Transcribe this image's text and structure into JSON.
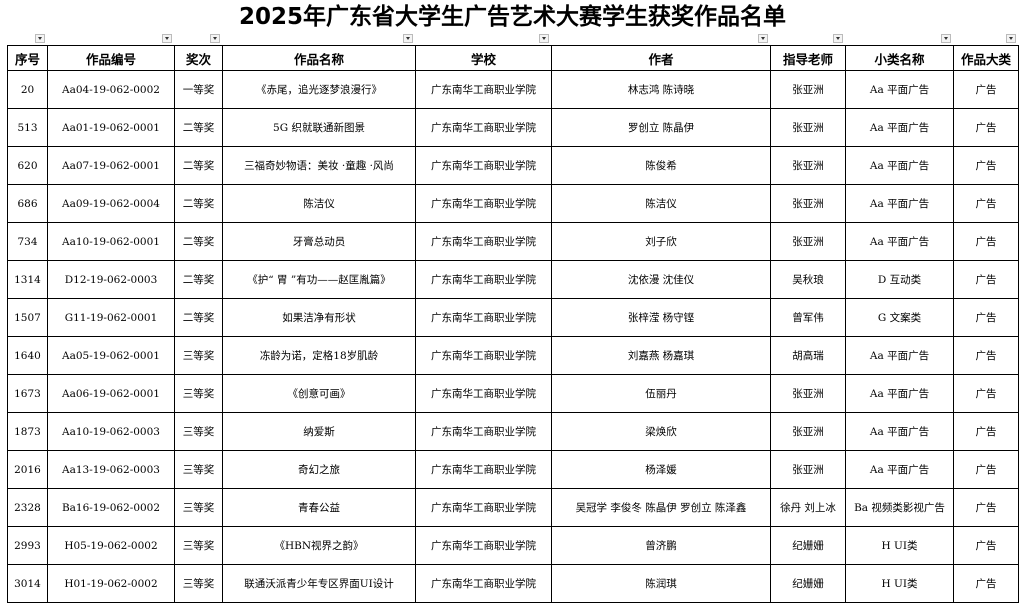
{
  "title": "2025年广东省大学生广告艺术大赛学生获奖作品名单",
  "table": {
    "header": [
      "序号",
      "作品编号",
      "奖次",
      "作品名称",
      "学校",
      "作者",
      "指导老师",
      "小类名称",
      "作品大类"
    ],
    "rows": [
      [
        "20",
        "Aa04-19-062-0002",
        "一等奖",
        "《赤尾，追光逐梦浪漫行》",
        "广东南华工商职业学院",
        "林志鸿 陈诗晓",
        "张亚洲",
        "Aa 平面广告",
        "广告"
      ],
      [
        "513",
        "Aa01-19-062-0001",
        "二等奖",
        "5G 织就联通新图景",
        "广东南华工商职业学院",
        "罗创立 陈晶伊",
        "张亚洲",
        "Aa 平面广告",
        "广告"
      ],
      [
        "620",
        "Aa07-19-062-0001",
        "二等奖",
        "三福奇妙物语：美妆 ·童趣 ·风尚",
        "广东南华工商职业学院",
        "陈俊希",
        "张亚洲",
        "Aa 平面广告",
        "广告"
      ],
      [
        "686",
        "Aa09-19-062-0004",
        "二等奖",
        "陈洁仪",
        "广东南华工商职业学院",
        "陈洁仪",
        "张亚洲",
        "Aa 平面广告",
        "广告"
      ],
      [
        "734",
        "Aa10-19-062-0001",
        "二等奖",
        "牙膏总动员",
        "广东南华工商职业学院",
        "刘子欣",
        "张亚洲",
        "Aa 平面广告",
        "广告"
      ],
      [
        "1314",
        "D12-19-062-0003",
        "二等奖",
        "《护“ 胃 ”有功——赵匡胤篇》",
        "广东南华工商职业学院",
        "沈依漫 沈佳仪",
        "吴秋琅",
        "D 互动类",
        "广告"
      ],
      [
        "1507",
        "G11-19-062-0001",
        "二等奖",
        "如果洁净有形状",
        "广东南华工商职业学院",
        "张梓滢 杨守铿",
        "曾军伟",
        "G 文案类",
        "广告"
      ],
      [
        "1640",
        "Aa05-19-062-0001",
        "三等奖",
        "冻龄为诺，定格18岁肌龄",
        "广东南华工商职业学院",
        "刘嘉燕 杨嘉琪",
        "胡高瑞",
        "Aa 平面广告",
        "广告"
      ],
      [
        "1673",
        "Aa06-19-062-0001",
        "三等奖",
        "《创意可画》",
        "广东南华工商职业学院",
        "伍丽丹",
        "张亚洲",
        "Aa 平面广告",
        "广告"
      ],
      [
        "1873",
        "Aa10-19-062-0003",
        "三等奖",
        "纳爱斯",
        "广东南华工商职业学院",
        "梁焕欣",
        "张亚洲",
        "Aa 平面广告",
        "广告"
      ],
      [
        "2016",
        "Aa13-19-062-0003",
        "三等奖",
        "奇幻之旅",
        "广东南华工商职业学院",
        "杨泽媛",
        "张亚洲",
        "Aa 平面广告",
        "广告"
      ],
      [
        "2328",
        "Ba16-19-062-0002",
        "三等奖",
        "青春公益",
        "广东南华工商职业学院",
        "吴冠学 李俊冬 陈晶伊 罗创立 陈泽鑫",
        "徐丹 刘上冰",
        "Ba 视频类影视广告",
        "广告"
      ],
      [
        "2993",
        "H05-19-062-0002",
        "三等奖",
        "《HBN视界之韵》",
        "广东南华工商职业学院",
        "曾济鹏",
        "纪姗姗",
        "H UI类",
        "广告"
      ],
      [
        "3014",
        "H01-19-062-0002",
        "三等奖",
        "联通沃派青少年专区界面UI设计",
        "广东南华工商职业学院",
        "陈润琪",
        "纪姗姗",
        "H UI类",
        "广告"
      ]
    ]
  }
}
